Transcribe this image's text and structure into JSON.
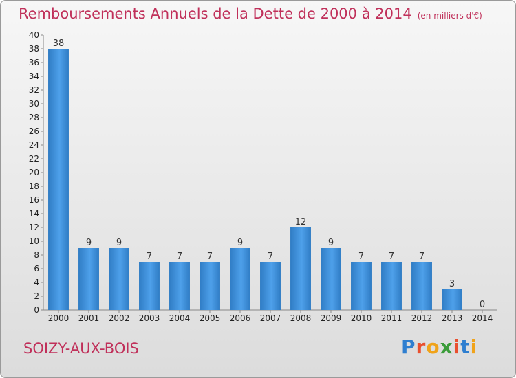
{
  "title": "Remboursements Annuels de la Dette de 2000 à 2014",
  "unit": "(en milliers d'€)",
  "commune": "SOIZY-AUX-BOIS",
  "logo": "Proxiti",
  "colors": {
    "accent": "#c0305a",
    "bar": "#3a8ad6",
    "bar_light": "#5aaaf0"
  },
  "chart_data": {
    "type": "bar",
    "title": "Remboursements Annuels de la Dette de 2000 à 2014",
    "categories": [
      "2000",
      "2001",
      "2002",
      "2003",
      "2004",
      "2005",
      "2006",
      "2007",
      "2008",
      "2009",
      "2010",
      "2011",
      "2012",
      "2013",
      "2014"
    ],
    "values": [
      38,
      9,
      9,
      7,
      7,
      7,
      9,
      7,
      12,
      9,
      7,
      7,
      7,
      3,
      0
    ],
    "ylim": [
      0,
      40
    ],
    "yticks": [
      0,
      2,
      4,
      6,
      8,
      10,
      12,
      14,
      16,
      18,
      20,
      22,
      24,
      26,
      28,
      30,
      32,
      34,
      36,
      38,
      40
    ],
    "grid": false
  }
}
